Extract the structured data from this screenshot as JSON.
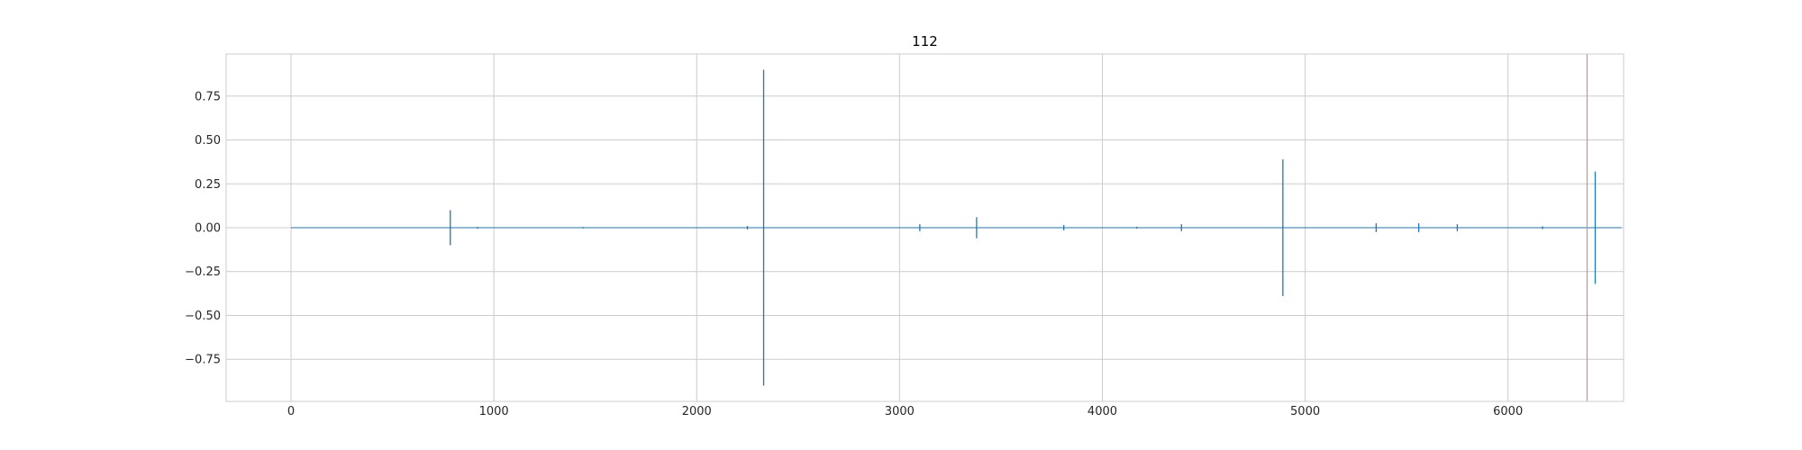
{
  "chart_data": {
    "type": "line",
    "title": "112",
    "xlabel": "",
    "ylabel": "",
    "xlim": [
      -320,
      6570
    ],
    "ylim": [
      -0.99,
      0.99
    ],
    "x_ticks": [
      0,
      1000,
      2000,
      3000,
      4000,
      5000,
      6000
    ],
    "x_tick_labels": [
      "0",
      "1000",
      "2000",
      "3000",
      "4000",
      "5000",
      "6000"
    ],
    "y_ticks": [
      0.75,
      0.5,
      0.25,
      0.0,
      -0.25,
      -0.5,
      -0.75
    ],
    "y_tick_labels": [
      "0.75",
      "0.50",
      "0.25",
      "0.00",
      "−0.25",
      "−0.50",
      "−0.75"
    ],
    "grid": true,
    "style": "seaborn-whitegrid",
    "colors": {
      "series": "#1f77b4",
      "vline": "#f08080",
      "grid": "#cccccc",
      "frame": "#cccccc"
    },
    "x_range": [
      0,
      6560
    ],
    "series": [
      {
        "spikes": [
          {
            "x": 785,
            "up": 0.1,
            "down": -0.1
          },
          {
            "x": 920,
            "up": 0.005,
            "down": -0.005
          },
          {
            "x": 1440,
            "up": 0.004,
            "down": -0.004
          },
          {
            "x": 2250,
            "up": 0.01,
            "down": -0.01
          },
          {
            "x": 2330,
            "up": 0.9,
            "down": -0.9
          },
          {
            "x": 3100,
            "up": 0.02,
            "down": -0.02
          },
          {
            "x": 3380,
            "up": 0.06,
            "down": -0.06
          },
          {
            "x": 3810,
            "up": 0.015,
            "down": -0.015
          },
          {
            "x": 4170,
            "up": 0.005,
            "down": -0.005
          },
          {
            "x": 4390,
            "up": 0.02,
            "down": -0.02
          },
          {
            "x": 4890,
            "up": 0.39,
            "down": -0.39
          },
          {
            "x": 5350,
            "up": 0.025,
            "down": -0.025
          },
          {
            "x": 5560,
            "up": 0.025,
            "down": -0.025
          },
          {
            "x": 5750,
            "up": 0.02,
            "down": -0.02
          },
          {
            "x": 6170,
            "up": 0.008,
            "down": -0.008
          },
          {
            "x": 6430,
            "up": 0.32,
            "down": -0.32
          }
        ]
      }
    ],
    "vline_x": 6390
  }
}
